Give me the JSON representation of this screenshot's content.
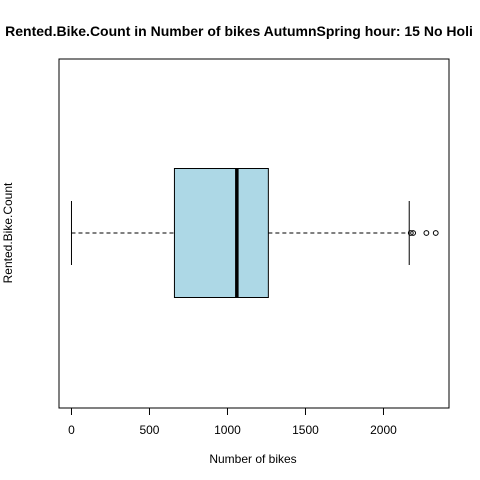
{
  "chart_data": {
    "type": "boxplot",
    "orientation": "horizontal",
    "title": "Rented.Bike.Count in Number of bikes AutumnSpring hour: 15 No Holi",
    "xlabel": "Number of bikes",
    "ylabel": "Rented.Bike.Count",
    "xlim": [
      -80,
      2420
    ],
    "xticks": [
      0,
      500,
      1000,
      1500,
      2000
    ],
    "xtick_labels": [
      "0",
      "500",
      "1000",
      "1500",
      "2000"
    ],
    "box": {
      "whisker_low": 0,
      "q1": 660,
      "median": 1060,
      "q3": 1262,
      "whisker_high": 2165,
      "outliers": [
        2175,
        2190,
        2275,
        2335
      ]
    },
    "box_color": "#ADD8E6",
    "grid": false
  }
}
